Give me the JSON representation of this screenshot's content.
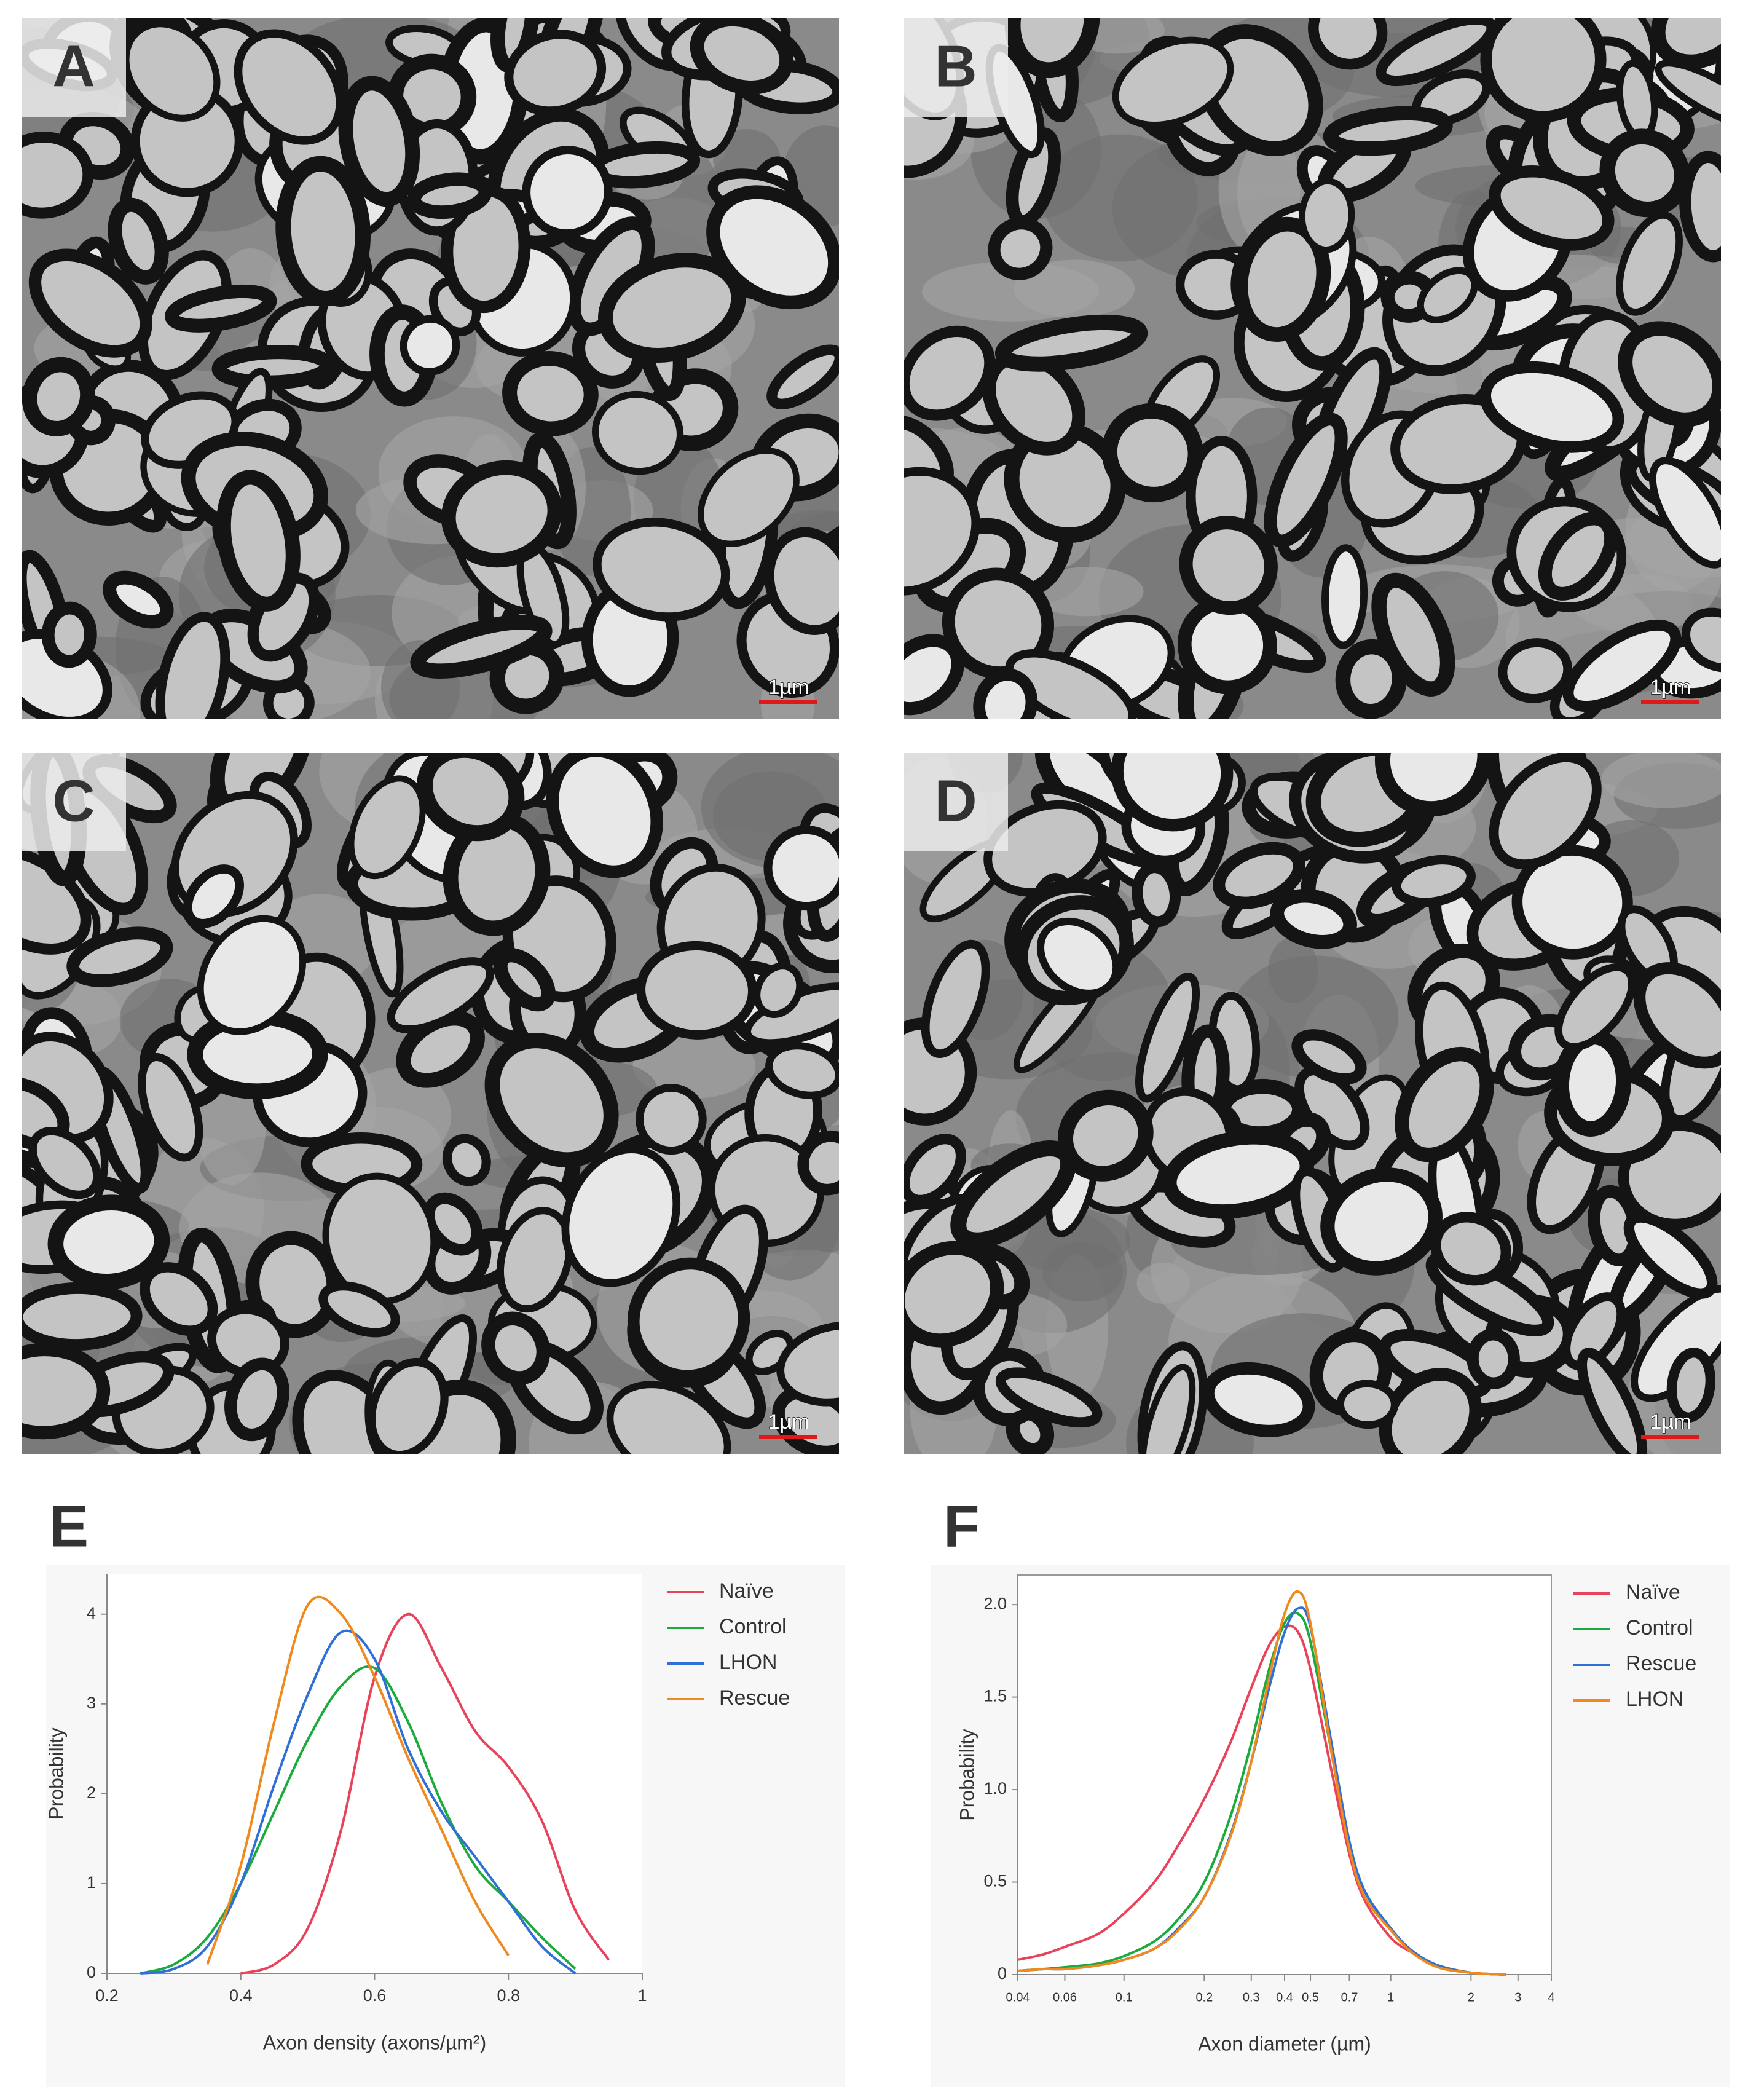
{
  "panels": [
    {
      "label": "A",
      "scale_bar": "1µm"
    },
    {
      "label": "B",
      "scale_bar": "1µm"
    },
    {
      "label": "C",
      "scale_bar": "1µm"
    },
    {
      "label": "D",
      "scale_bar": "1µm"
    }
  ],
  "chart_data": [
    {
      "type": "line",
      "panel": "E",
      "xscale": "linear",
      "box": false,
      "legend": "right",
      "xlabel": "Axon density (axons/µm²)",
      "ylabel": "Probability",
      "x": [
        0.2,
        0.25,
        0.3,
        0.35,
        0.4,
        0.45,
        0.5,
        0.55,
        0.6,
        0.65,
        0.7,
        0.75,
        0.8,
        0.85,
        0.9,
        0.95,
        1.0
      ],
      "xlim": [
        0.2,
        1
      ],
      "xticks": [
        0.2,
        0.4,
        0.6,
        0.8,
        1
      ],
      "ylim": [
        0,
        4.45
      ],
      "yticks": [
        0,
        1,
        2,
        3,
        4
      ],
      "series": [
        {
          "name": "Naïve",
          "color": "#e8435a",
          "values": [
            null,
            null,
            null,
            null,
            0,
            0.1,
            0.5,
            1.6,
            3.3,
            4.0,
            3.4,
            2.7,
            2.3,
            1.7,
            0.7,
            0.15,
            null
          ]
        },
        {
          "name": "Control",
          "color": "#1aab3c",
          "values": [
            null,
            0,
            0.1,
            0.4,
            1.0,
            1.8,
            2.6,
            3.2,
            3.4,
            2.8,
            1.9,
            1.2,
            0.8,
            0.4,
            0.05,
            null,
            null
          ]
        },
        {
          "name": "LHON",
          "color": "#2f6fd6",
          "values": [
            null,
            0,
            0.05,
            0.3,
            1.0,
            2.1,
            3.1,
            3.8,
            3.5,
            2.5,
            1.8,
            1.3,
            0.8,
            0.3,
            0,
            null,
            null
          ]
        },
        {
          "name": "Rescue",
          "color": "#ee8a1e",
          "values": [
            null,
            null,
            null,
            0.1,
            1.2,
            2.8,
            4.1,
            4.0,
            3.3,
            2.4,
            1.6,
            0.8,
            0.2,
            null,
            null,
            null,
            null
          ]
        }
      ]
    },
    {
      "type": "line",
      "panel": "F",
      "xscale": "log",
      "box": true,
      "legend": "right",
      "xlabel": "Axon diameter (µm)",
      "ylabel": "Probability",
      "x": [
        0.04,
        0.05,
        0.06,
        0.08,
        0.1,
        0.13,
        0.16,
        0.2,
        0.25,
        0.3,
        0.35,
        0.4,
        0.45,
        0.5,
        0.6,
        0.7,
        0.8,
        1,
        1.2,
        1.5,
        2,
        2.7
      ],
      "xlim": [
        0.04,
        4
      ],
      "xticks": [
        0.04,
        0.06,
        0.1,
        0.2,
        0.3,
        0.4,
        0.5,
        0.7,
        1,
        2,
        3,
        4
      ],
      "ylim": [
        0,
        2.16
      ],
      "yticks": [
        0,
        0.5,
        {
          "value": 1,
          "label": "1.0"
        },
        1.5,
        {
          "value": 2,
          "label": "2.0"
        }
      ],
      "series": [
        {
          "name": "Naïve",
          "color": "#e8435a",
          "values": [
            0.08,
            0.11,
            0.15,
            0.22,
            0.33,
            0.5,
            0.7,
            0.95,
            1.25,
            1.55,
            1.78,
            1.88,
            1.85,
            1.65,
            1.1,
            0.65,
            0.4,
            0.2,
            0.12,
            0.05,
            0.01,
            0
          ]
        },
        {
          "name": "Control",
          "color": "#1aab3c",
          "values": [
            0.02,
            0.03,
            0.04,
            0.06,
            0.1,
            0.18,
            0.3,
            0.5,
            0.85,
            1.25,
            1.65,
            1.9,
            1.95,
            1.8,
            1.2,
            0.7,
            0.45,
            0.25,
            0.12,
            0.05,
            0.01,
            0
          ]
        },
        {
          "name": "Rescue",
          "color": "#2f6fd6",
          "values": [
            0.02,
            0.03,
            0.03,
            0.05,
            0.08,
            0.14,
            0.25,
            0.42,
            0.75,
            1.15,
            1.55,
            1.85,
            1.98,
            1.88,
            1.25,
            0.72,
            0.45,
            0.25,
            0.13,
            0.05,
            0.01,
            0
          ]
        },
        {
          "name": "LHON",
          "color": "#ee8a1e",
          "values": [
            0.02,
            0.03,
            0.03,
            0.05,
            0.08,
            0.14,
            0.24,
            0.42,
            0.74,
            1.15,
            1.6,
            1.95,
            2.07,
            1.9,
            1.2,
            0.68,
            0.42,
            0.24,
            0.12,
            0.04,
            0.01,
            0
          ]
        }
      ]
    }
  ]
}
